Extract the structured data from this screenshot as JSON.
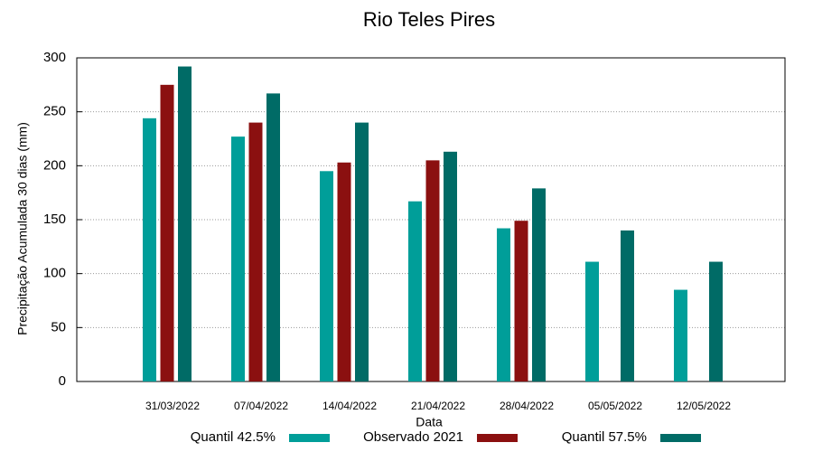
{
  "chart_data": {
    "type": "bar",
    "title": "Rio Teles Pires",
    "x_label": "Data",
    "y_label": "Precipitação Acumulada 30 dias (mm)",
    "categories": [
      "31/03/2022",
      "07/04/2022",
      "14/04/2022",
      "21/04/2022",
      "28/04/2022",
      "05/05/2022",
      "12/05/2022"
    ],
    "series": [
      {
        "name": "Quantil 42.5%",
        "color": "#009e99",
        "values": [
          244,
          227,
          195,
          167,
          142,
          111,
          85
        ]
      },
      {
        "name": "Observado 2021",
        "color": "#8b1010",
        "values": [
          275,
          240,
          203,
          205,
          149,
          null,
          null
        ]
      },
      {
        "name": "Quantil 57.5%",
        "color": "#006b66",
        "values": [
          292,
          267,
          240,
          213,
          179,
          140,
          111
        ]
      }
    ],
    "ylim": [
      0,
      300
    ],
    "yticks": [
      0,
      50,
      100,
      150,
      200,
      250,
      300
    ],
    "grid": true,
    "legend": "bottom"
  }
}
